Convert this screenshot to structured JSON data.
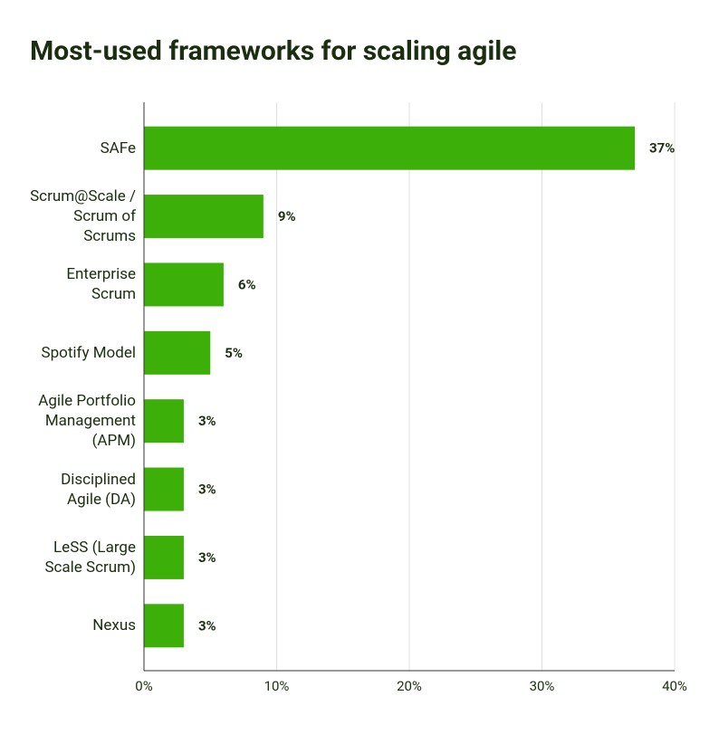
{
  "chart_data": {
    "type": "hbar",
    "title": "Most-used frameworks for scaling agile",
    "categories": [
      "SAFe",
      "Scrum@Scale / Scrum of Scrums",
      "Enterprise Scrum",
      "Spotify Model",
      "Agile Portfolio Management (APM)",
      "Disciplined Agile (DA)",
      "LeSS (Large Scale Scrum)",
      "Nexus"
    ],
    "values": [
      37,
      9,
      6,
      5,
      3,
      3,
      3,
      3
    ],
    "value_labels": [
      "37%",
      "9%",
      "6%",
      "5%",
      "3%",
      "3%",
      "3%",
      "3%"
    ],
    "color": "#3cb009",
    "xlim": [
      0,
      40
    ],
    "xticks": [
      {
        "value": 0,
        "label": "0%"
      },
      {
        "value": 10,
        "label": "10%"
      },
      {
        "value": 20,
        "label": "20%"
      },
      {
        "value": 30,
        "label": "30%"
      },
      {
        "value": 40,
        "label": "40%"
      }
    ],
    "grid": true
  }
}
